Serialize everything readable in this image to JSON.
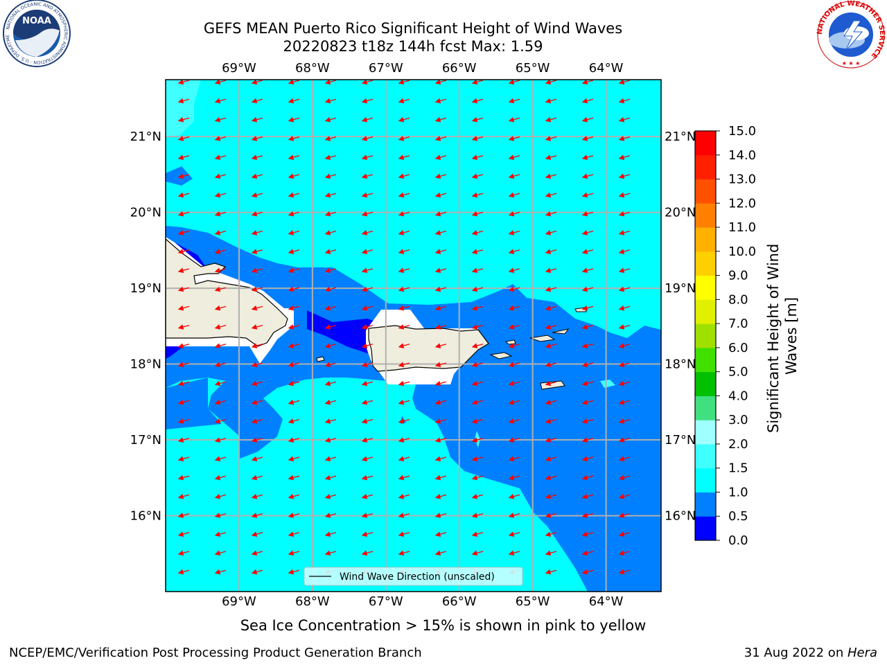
{
  "title": {
    "line1": "GEFS MEAN Puerto Rico Significant Height of Wind Waves",
    "line2": "20220823 t18z 144h fcst   Max: 1.59"
  },
  "logos": {
    "left": {
      "icon": "noaa-logo",
      "text": "NOAA",
      "ring_text": "NATIONAL OCEANIC AND ATMOSPHERIC ADMINISTRATION · U.S. DEPARTMENT OF COMMERCE"
    },
    "right": {
      "icon": "nws-logo",
      "ring_text": "NATIONAL WEATHER SERVICE"
    }
  },
  "map": {
    "lon_ticks": [
      "69°W",
      "68°W",
      "67°W",
      "66°W",
      "65°W",
      "64°W"
    ],
    "lat_ticks": [
      "21°N",
      "20°N",
      "19°N",
      "18°N",
      "17°N",
      "16°N"
    ],
    "lon_values": [
      -69,
      -68,
      -67,
      -66,
      -65,
      -64
    ],
    "lat_values": [
      21,
      20,
      19,
      18,
      17,
      16
    ],
    "extent": {
      "lon_min": -70,
      "lon_max": -63.25,
      "lat_min": 15,
      "lat_max": 21.75
    },
    "legend_label": "Wind Wave Direction (unscaled)",
    "arrow_color": "#ff0000",
    "land_color": "#efedde"
  },
  "colorbar": {
    "label": "Significant Height of Wind Waves [m]",
    "label_line1": "Significant Height of Wind",
    "label_line2": "Waves [m]",
    "ticks": [
      "15.0",
      "14.0",
      "13.0",
      "12.0",
      "11.0",
      "10.0",
      "9.0",
      "8.0",
      "7.0",
      "6.0",
      "5.0",
      "4.0",
      "3.0",
      "2.0",
      "1.5",
      "1.0",
      "0.5",
      "0.0"
    ],
    "colors_bottom_to_top": [
      "#0000ff",
      "#0080ff",
      "#00ffff",
      "#40ffff",
      "#a0ffff",
      "#40e080",
      "#00c000",
      "#40e000",
      "#a0e000",
      "#e0f000",
      "#ffff00",
      "#ffd000",
      "#ffb000",
      "#ff8000",
      "#ff5000",
      "#ff2000",
      "#ff0000"
    ]
  },
  "chart_data": {
    "type": "heatmap",
    "title": "GEFS MEAN Puerto Rico Significant Height of Wind Waves",
    "subtitle": "20220823 t18z 144h fcst   Max: 1.59",
    "variable": "Significant Height of Wind Waves [m]",
    "max_value": 1.59,
    "levels": [
      0.0,
      0.5,
      1.0,
      1.5,
      2.0,
      3.0,
      4.0,
      5.0,
      6.0,
      7.0,
      8.0,
      9.0,
      10.0,
      11.0,
      12.0,
      13.0,
      14.0,
      15.0
    ],
    "regions": [
      {
        "range": "1.0-1.5",
        "area": "open Atlantic north of 19.3°N and Caribbean south of 17.6°N (west of 65.2°W)"
      },
      {
        "range": "0.5-1.0",
        "area": "band along north coasts, Mona Passage, south of Puerto Rico and Virgin Islands, southeast sector"
      },
      {
        "range": "0.0-0.5",
        "area": "Mona Passage west of Puerto Rico and lee of Hispaniola"
      }
    ],
    "wind_wave_direction": "from east toward west-southwest (unscaled arrows)"
  },
  "footer": {
    "note": "Sea Ice Concentration > 15% is shown in pink to yellow",
    "credit": "NCEP/EMC/Verification Post Processing Product Generation Branch",
    "date": "31 Aug 2022 on ",
    "machine": "Hera"
  }
}
